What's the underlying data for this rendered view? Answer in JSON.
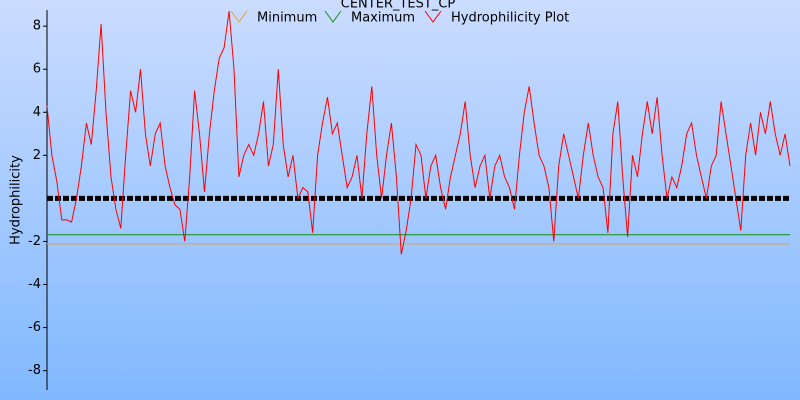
{
  "chart_data": {
    "type": "line",
    "title": "CENTER_TEST_CP",
    "y_label": "Hydrophilicity",
    "ylim": [
      -8.9,
      8.75
    ],
    "yticks": [
      -8,
      -6,
      -4,
      -2,
      2,
      4,
      6,
      8
    ],
    "reference_line": {
      "value": 0,
      "color": "#000000",
      "dashed": true
    },
    "series": [
      {
        "name": "Minimum",
        "color": "#f0a030",
        "value": -2.11
      },
      {
        "name": "Maximum",
        "color": "#109010",
        "value": -1.69
      },
      {
        "name": "Hydrophilicity Plot",
        "color": "#ff0000",
        "values": [
          4.3,
          2,
          0.8,
          -1,
          -1,
          -1.1,
          0,
          1.5,
          3.5,
          2.5,
          5,
          8.1,
          4,
          1,
          -0.5,
          -1.4,
          2,
          5,
          4,
          6,
          3,
          1.5,
          3,
          3.5,
          1.5,
          0.5,
          -0.3,
          -0.5,
          -2,
          1,
          5,
          3,
          0.3,
          3,
          5,
          6.5,
          7,
          8.7,
          6,
          1,
          2,
          2.5,
          2,
          3,
          4.5,
          1.5,
          2.5,
          6,
          2.5,
          1,
          2,
          0,
          0.5,
          0.3,
          -1.6,
          2,
          3.5,
          4.7,
          3,
          3.5,
          2,
          0.5,
          1,
          2,
          0,
          3,
          5.2,
          2,
          0,
          2,
          3.5,
          1,
          -2.6,
          -1.5,
          0,
          2.5,
          2,
          0,
          1.5,
          2,
          0.5,
          -0.5,
          1,
          2,
          3,
          4.5,
          2,
          0.5,
          1.5,
          2,
          0,
          1.5,
          2,
          1,
          0.5,
          -0.5,
          2,
          4,
          5.2,
          3.5,
          2,
          1.5,
          0.5,
          -2,
          1.5,
          3,
          2,
          1,
          0,
          2,
          3.5,
          2,
          1,
          0.5,
          -1.6,
          3,
          4.5,
          1,
          -1.8,
          2,
          1,
          3,
          4.5,
          3,
          4.7,
          2,
          0,
          1,
          0.5,
          1.5,
          3,
          3.5,
          2,
          1,
          0,
          1.5,
          2,
          4.5,
          3,
          1.5,
          0,
          -1.5,
          2,
          3.5,
          2,
          4,
          3,
          4.5,
          3,
          2,
          3,
          1.5
        ]
      }
    ]
  }
}
